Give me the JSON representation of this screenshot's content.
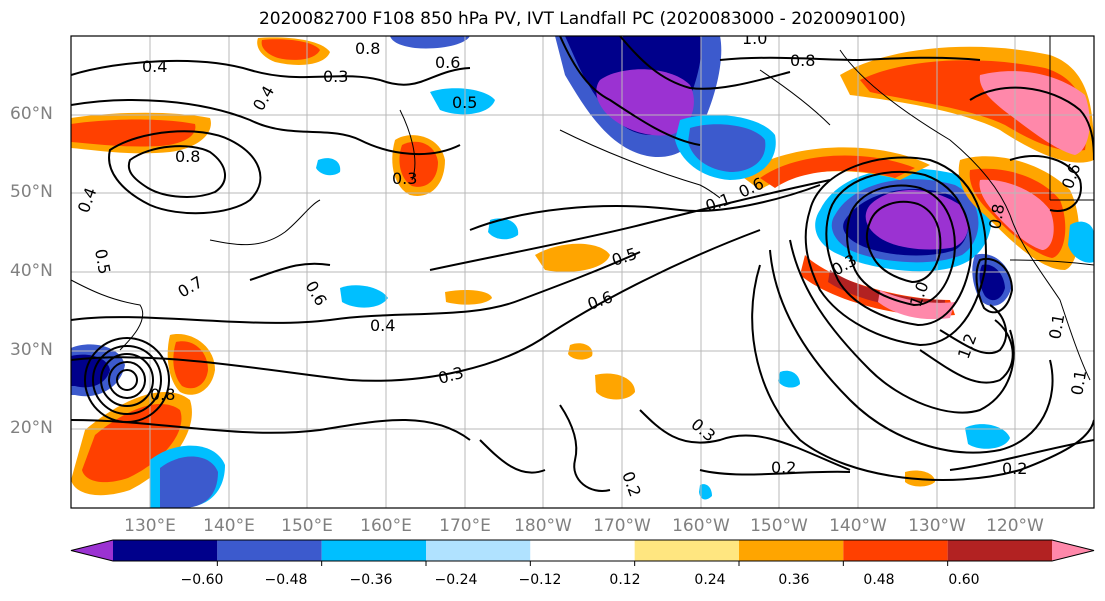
{
  "title": "2020082700 F108 850 hPa PV, IVT Landfall PC (2020083000 - 2020090100)",
  "lat_labels": [
    "60°N",
    "50°N",
    "40°N",
    "30°N",
    "20°N"
  ],
  "lon_labels": [
    "130°E",
    "140°E",
    "150°E",
    "160°E",
    "170°E",
    "180°W",
    "170°W",
    "160°W",
    "150°W",
    "140°W",
    "130°W",
    "120°W"
  ],
  "colorbar": {
    "colors": [
      "#9b32d2",
      "#00008b",
      "#3c5acd",
      "#00bfff",
      "#b0e2ff",
      "#ffffff",
      "#ffe680",
      "#ffa500",
      "#ff4000",
      "#b22222",
      "#ff88aa"
    ],
    "ticks": [
      "−0.60",
      "−0.48",
      "−0.36",
      "−0.24",
      "−0.12",
      "0.12",
      "0.24",
      "0.36",
      "0.48",
      "0.60"
    ]
  },
  "contour_labels": [
    "0.4",
    "0.8",
    "0.6",
    "0.3",
    "0.4",
    "0.5",
    "0.8",
    "0.3",
    "0.8",
    "0.4",
    "0.5",
    "0.7",
    "0.6",
    "0.5",
    "0.4",
    "0.3",
    "0.2",
    "0.2",
    "0.2",
    "0.3",
    "0.6",
    "0.1",
    "0.3",
    "1.0",
    "1.2",
    "1.0",
    "0.8",
    "0.6",
    "0.1",
    "0.1",
    "0.6",
    "0.8"
  ]
}
